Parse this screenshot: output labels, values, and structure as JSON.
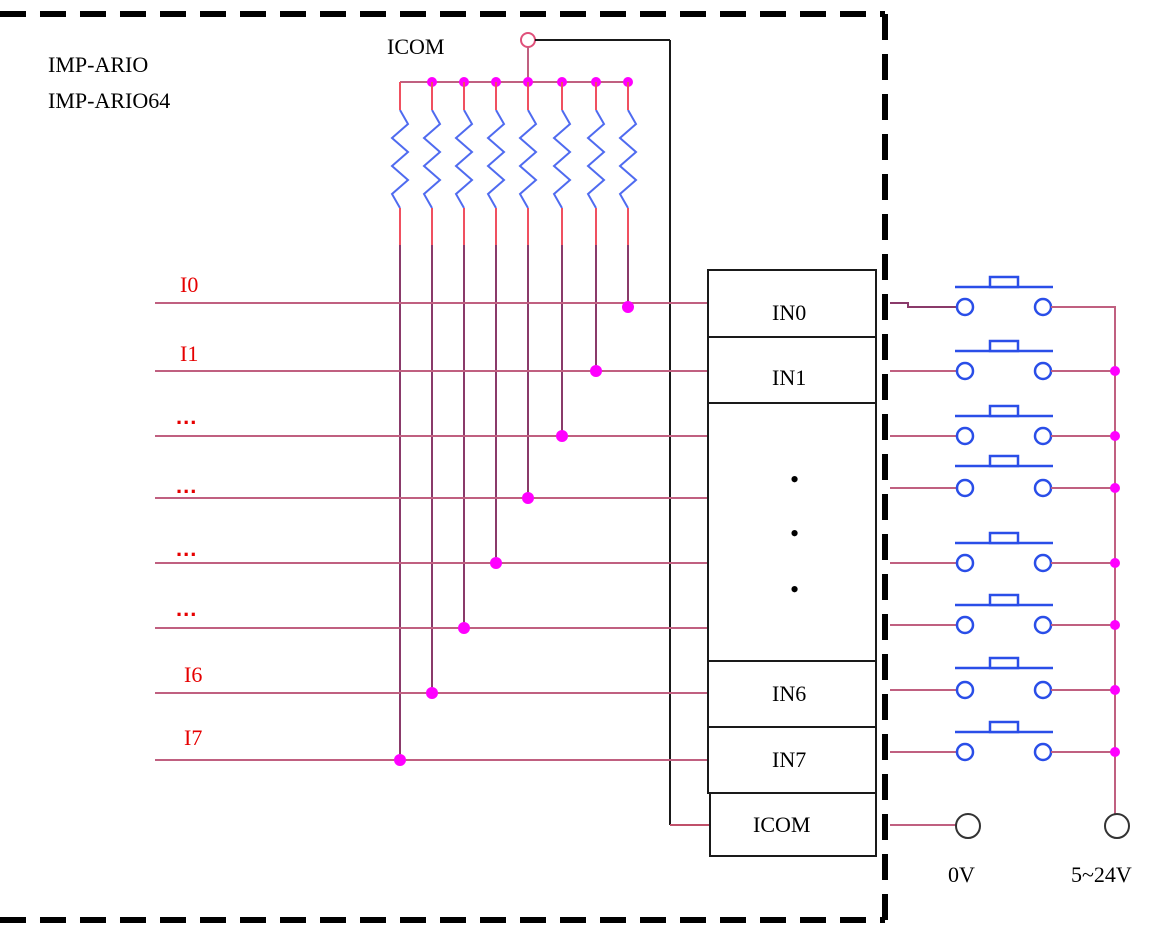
{
  "module": {
    "name_line1": "IMP-ARIO",
    "name_line2": "IMP-ARIO64",
    "icom_top_label": "ICOM"
  },
  "signals": [
    {
      "label": "I0",
      "kind": "text"
    },
    {
      "label": "I1",
      "kind": "text"
    },
    {
      "label": "...",
      "kind": "dots"
    },
    {
      "label": "...",
      "kind": "dots"
    },
    {
      "label": "...",
      "kind": "dots"
    },
    {
      "label": "...",
      "kind": "dots"
    },
    {
      "label": "I6",
      "kind": "text"
    },
    {
      "label": "I7",
      "kind": "text"
    }
  ],
  "terminals": {
    "in0": "IN0",
    "in1": "IN1",
    "ellipsis": "•",
    "in6": "IN6",
    "in7": "IN7",
    "icom": "ICOM"
  },
  "supply": {
    "zero_volt": "0V",
    "supply_volt": "5~24V"
  },
  "colors": {
    "signal_wire": "#c06080",
    "junction": "#ff00ff",
    "resistor": "#4f6bf0",
    "switch": "#2a4ee8",
    "label_red": "#e60000",
    "boundary": "#000000"
  }
}
